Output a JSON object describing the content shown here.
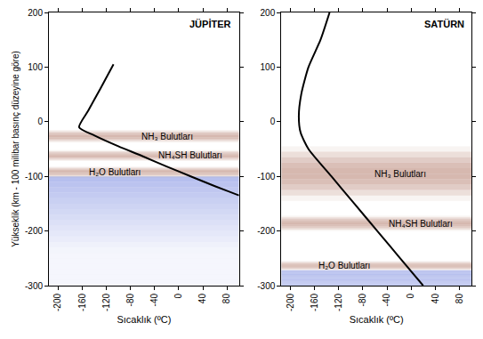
{
  "chart_data": [
    {
      "type": "line",
      "title": "JÜPİTER",
      "xlabel": "Sıcaklık (ºC)",
      "ylabel": "Yükseklik (km - 100 milibar basınç düzeyine göre)",
      "x": [
        -108,
        -130,
        -150,
        -165,
        -140,
        -100,
        -60,
        -20,
        20,
        60,
        100
      ],
      "values": [
        105,
        60,
        20,
        -10,
        -25,
        -45,
        -63,
        -82,
        -100,
        -118,
        -135
      ],
      "color": "#000000",
      "xlim": [
        -215,
        100
      ],
      "xticks": [
        -200,
        -160,
        -120,
        -80,
        -40,
        0,
        40,
        80
      ],
      "ylim": [
        -300,
        200
      ],
      "yticks": [
        -300,
        -200,
        -100,
        0,
        100,
        200
      ],
      "grid": false,
      "clouds": [
        {
          "label": "NH₃ Bulutları",
          "range": [
            -38,
            -15
          ]
        },
        {
          "label": "NH₄SH Bulutları",
          "range": [
            -72,
            -52
          ]
        },
        {
          "label": "H₂O Bulutları",
          "range": [
            -102,
            -82
          ]
        }
      ],
      "shaded": [
        -300,
        -100
      ]
    },
    {
      "type": "line",
      "title": "SATÜRN",
      "xlabel": "Sıcaklık (ºC)",
      "x": [
        -135,
        -150,
        -170,
        -182,
        -186,
        -183,
        -170,
        -132,
        -94,
        -56,
        -18,
        20
      ],
      "values": [
        200,
        150,
        100,
        50,
        10,
        -20,
        -50,
        -100,
        -150,
        -200,
        -250,
        -300
      ],
      "color": "#000000",
      "xlim": [
        -215,
        100
      ],
      "xticks": [
        -200,
        -160,
        -120,
        -80,
        -40,
        0,
        40,
        80
      ],
      "ylim": [
        -300,
        200
      ],
      "yticks": [
        -300,
        -200,
        -100,
        0,
        100,
        200
      ],
      "grid": false,
      "clouds": [
        {
          "label": "NH₃ Bulutları",
          "range": [
            -145,
            -45
          ]
        },
        {
          "label": "NH₄SH Bulutları",
          "range": [
            -200,
            -172
          ]
        },
        {
          "label": "H₂O Bulutları",
          "range": [
            -272,
            -255
          ]
        }
      ],
      "shaded": [
        -300,
        -272
      ]
    }
  ]
}
